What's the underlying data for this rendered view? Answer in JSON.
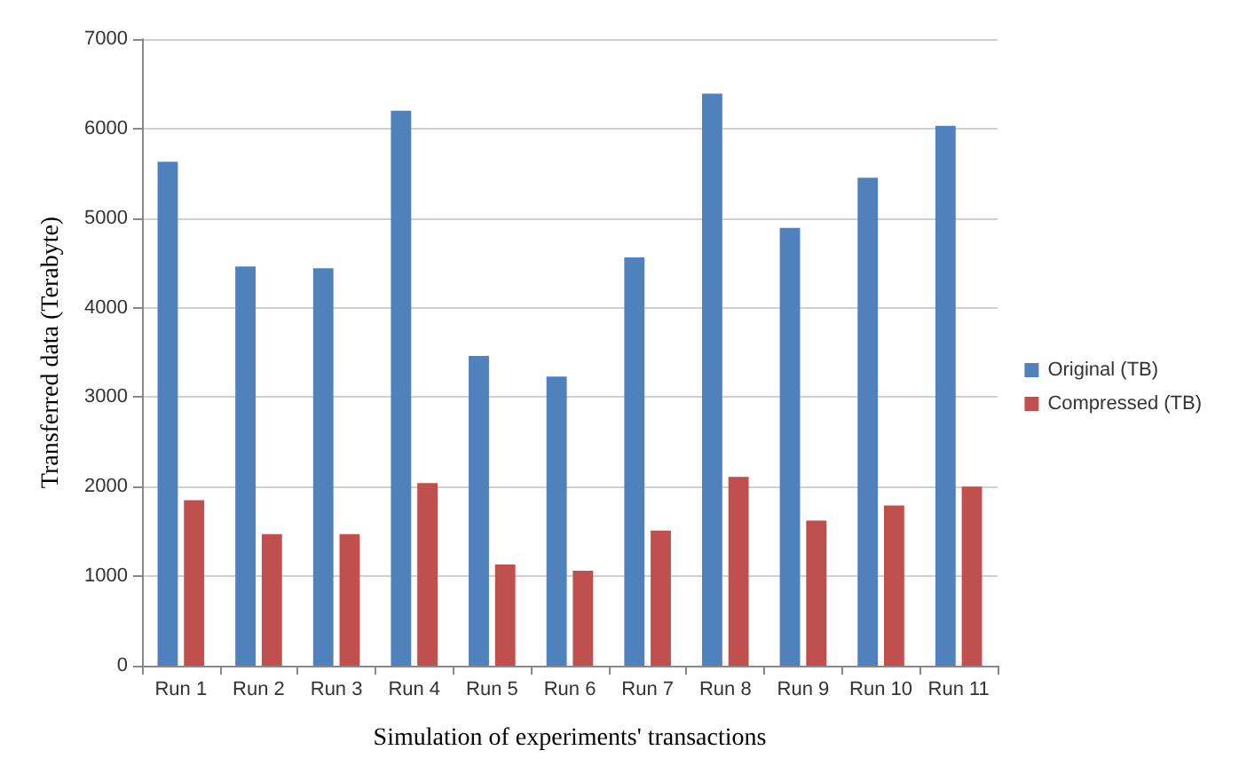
{
  "chart_data": {
    "type": "bar",
    "xlabel": "Simulation of experiments' transactions",
    "ylabel": "Transferred data (Terabyte)",
    "categories": [
      "Run 1",
      "Run 2",
      "Run 3",
      "Run 4",
      "Run 5",
      "Run 6",
      "Run 7",
      "Run 8",
      "Run 9",
      "Run 10",
      "Run 11"
    ],
    "series": [
      {
        "name": "Original (TB)",
        "color": "#4f81bd",
        "values": [
          5630,
          4460,
          4440,
          6200,
          3460,
          3230,
          4560,
          6390,
          4890,
          5450,
          6030
        ]
      },
      {
        "name": "Compressed (TB)",
        "color": "#c0504d",
        "values": [
          1850,
          1470,
          1470,
          2040,
          1130,
          1060,
          1510,
          2110,
          1620,
          1790,
          2000
        ]
      }
    ],
    "ylim": [
      0,
      7000
    ],
    "yticks": [
      0,
      1000,
      2000,
      3000,
      4000,
      5000,
      6000,
      7000
    ],
    "grid": "y",
    "legend": "right"
  }
}
